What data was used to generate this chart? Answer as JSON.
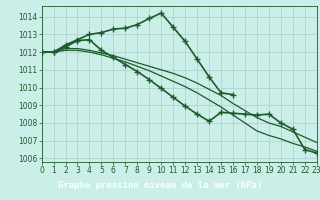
{
  "title": "Graphe pression niveau de la mer (hPa)",
  "background_color": "#cceee8",
  "plot_bg_color": "#cceee8",
  "grid_color": "#aacccc",
  "line_color": "#1a5c2a",
  "title_bg_color": "#2a7a3a",
  "title_text_color": "#ffffff",
  "series": [
    {
      "x": [
        0,
        1,
        2,
        3,
        4,
        5,
        6,
        7,
        8,
        9,
        10,
        11,
        12,
        13,
        14,
        15,
        16,
        17,
        18,
        19,
        20,
        21,
        22,
        23
      ],
      "y": [
        1012.0,
        1012.0,
        1012.4,
        1012.7,
        1013.0,
        1013.1,
        1013.3,
        1013.35,
        1013.55,
        1013.9,
        1014.2,
        1013.4,
        1012.6,
        1011.6,
        1010.6,
        1009.7,
        1009.6,
        null,
        null,
        null,
        null,
        null,
        null,
        null
      ],
      "marker": "+",
      "lw": 1.2,
      "has_end": false
    },
    {
      "x": [
        0,
        1,
        2,
        3,
        4,
        5,
        6,
        7,
        8,
        9,
        10,
        11,
        12,
        13,
        14,
        15,
        16,
        17,
        18,
        19,
        20,
        21,
        22,
        23
      ],
      "y": [
        1012.0,
        1012.0,
        1012.2,
        1012.2,
        1012.1,
        1011.95,
        1011.8,
        1011.6,
        1011.4,
        1011.2,
        1011.0,
        1010.8,
        1010.55,
        1010.25,
        1009.9,
        1009.55,
        1009.1,
        1008.7,
        1008.3,
        1008.0,
        1007.8,
        1007.5,
        1007.2,
        1006.9
      ],
      "marker": null,
      "lw": 0.9
    },
    {
      "x": [
        0,
        1,
        2,
        3,
        4,
        5,
        6,
        7,
        8,
        9,
        10,
        11,
        12,
        13,
        14,
        15,
        16,
        17,
        18,
        19,
        20,
        21,
        22,
        23
      ],
      "y": [
        1012.0,
        1012.0,
        1012.1,
        1012.1,
        1012.0,
        1011.85,
        1011.65,
        1011.45,
        1011.2,
        1010.95,
        1010.65,
        1010.35,
        1010.05,
        1009.7,
        1009.3,
        1008.9,
        1008.45,
        1008.0,
        1007.55,
        1007.3,
        1007.1,
        1006.85,
        1006.65,
        1006.4
      ],
      "marker": null,
      "lw": 0.9
    },
    {
      "x": [
        0,
        1,
        2,
        3,
        4,
        5,
        6,
        7,
        8,
        9,
        10,
        11,
        12,
        13,
        14,
        15,
        16,
        17,
        18,
        19,
        20,
        21,
        22,
        23
      ],
      "y": [
        1012.0,
        1012.0,
        1012.3,
        1012.65,
        1012.7,
        1012.1,
        1011.7,
        1011.3,
        1010.9,
        1010.45,
        1009.95,
        1009.45,
        1008.95,
        1008.5,
        1008.1,
        1008.6,
        1008.55,
        1008.5,
        1008.45,
        1008.5,
        1008.0,
        1007.65,
        1006.5,
        1006.3
      ],
      "marker": "+",
      "lw": 1.2
    }
  ],
  "xlim": [
    0,
    23
  ],
  "ylim": [
    1005.8,
    1014.6
  ],
  "yticks": [
    1006,
    1007,
    1008,
    1009,
    1010,
    1011,
    1012,
    1013,
    1014
  ],
  "xticks": [
    0,
    1,
    2,
    3,
    4,
    5,
    6,
    7,
    8,
    9,
    10,
    11,
    12,
    13,
    14,
    15,
    16,
    17,
    18,
    19,
    20,
    21,
    22,
    23
  ],
  "marker_size": 4,
  "tick_fontsize": 5.5,
  "title_fontsize": 6.5,
  "tick_color": "#1a5c2a"
}
